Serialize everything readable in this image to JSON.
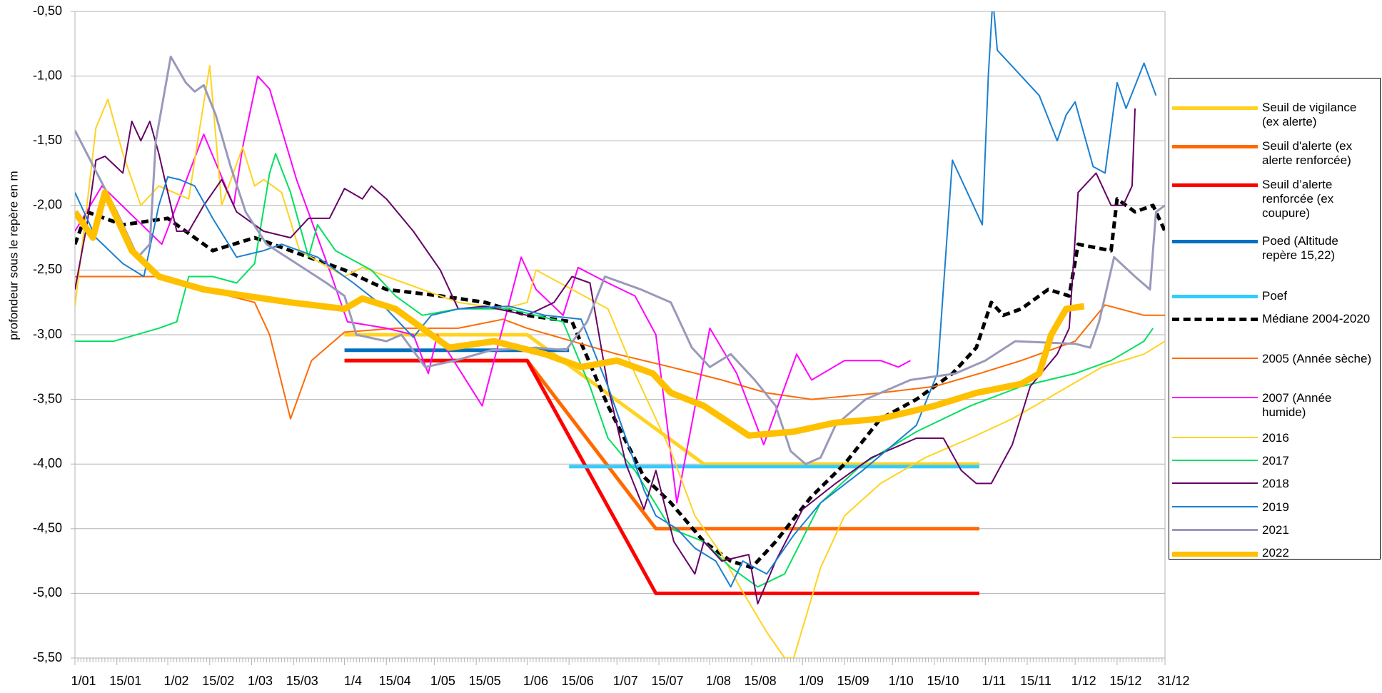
{
  "chart_data": {
    "type": "line",
    "y_label": "profondeur sous le repère en m",
    "xlim": [
      1,
      365
    ],
    "ylim": [
      -5.5,
      -0.5
    ],
    "xticks": [
      {
        "value": 1,
        "label": "1/01"
      },
      {
        "value": 15,
        "label": "15/01"
      },
      {
        "value": 32,
        "label": "1/02"
      },
      {
        "value": 46,
        "label": "15/02"
      },
      {
        "value": 60,
        "label": "1/03"
      },
      {
        "value": 74,
        "label": "15/03"
      },
      {
        "value": 91,
        "label": "1/4"
      },
      {
        "value": 105,
        "label": "15/04"
      },
      {
        "value": 121,
        "label": "1/05"
      },
      {
        "value": 135,
        "label": "15/05"
      },
      {
        "value": 152,
        "label": "1/06"
      },
      {
        "value": 166,
        "label": "15/06"
      },
      {
        "value": 182,
        "label": "1/07"
      },
      {
        "value": 196,
        "label": "15/07"
      },
      {
        "value": 213,
        "label": "1/08"
      },
      {
        "value": 227,
        "label": "15/08"
      },
      {
        "value": 244,
        "label": "1/09"
      },
      {
        "value": 258,
        "label": "15/09"
      },
      {
        "value": 274,
        "label": "1/10"
      },
      {
        "value": 288,
        "label": "15/10"
      },
      {
        "value": 305,
        "label": "1/11"
      },
      {
        "value": 319,
        "label": "15/11"
      },
      {
        "value": 335,
        "label": "1/12"
      },
      {
        "value": 349,
        "label": "15/12"
      },
      {
        "value": 365,
        "label": "31/12"
      }
    ],
    "yticks": [
      {
        "value": -0.5,
        "label": "-0,50"
      },
      {
        "value": -1,
        "label": "-1,00"
      },
      {
        "value": -1.5,
        "label": "-1,50"
      },
      {
        "value": -2,
        "label": "-2,00"
      },
      {
        "value": -2.5,
        "label": "-2,50"
      },
      {
        "value": -3,
        "label": "-3,00"
      },
      {
        "value": -3.5,
        "label": "-3,50"
      },
      {
        "value": -4,
        "label": "-4,00"
      },
      {
        "value": -4.5,
        "label": "-4,50"
      },
      {
        "value": -5,
        "label": "-5,00"
      },
      {
        "value": -5.5,
        "label": "-5,50"
      }
    ],
    "grid": true,
    "legend": "right",
    "series": [
      {
        "name": "Seuil de vigilance (ex alerte)",
        "color": "#ffd320",
        "width": 5,
        "x": [
          91,
          152,
          211,
          303
        ],
        "values": [
          -3,
          -3,
          -4,
          -4
        ]
      },
      {
        "name": "Seuil d'alerte (ex alerte renforcée)",
        "color": "#ff6a00",
        "width": 5,
        "x": [
          91,
          152,
          195,
          303
        ],
        "values": [
          -3.2,
          -3.2,
          -4.5,
          -4.5
        ]
      },
      {
        "name": "Seuil d’alerte renforcée (ex coupure)",
        "color": "#ff0000",
        "width": 5,
        "x": [
          91,
          152,
          195,
          303
        ],
        "values": [
          -3.2,
          -3.2,
          -5,
          -5
        ]
      },
      {
        "name": "Poed (Altitude repère 15,22)",
        "color": "#0070c0",
        "width": 5,
        "x": [
          91,
          166
        ],
        "values": [
          -3.12,
          -3.12
        ]
      },
      {
        "name": "Poef",
        "color": "#33ccff",
        "width": 5,
        "x": [
          166,
          303
        ],
        "values": [
          -4.02,
          -4.02
        ]
      },
      {
        "name": "Médiane 2004-2020",
        "color": "#000000",
        "width": 5,
        "dashed": true,
        "x": [
          1,
          5,
          17,
          32,
          47,
          61,
          73,
          91,
          105,
          123,
          138,
          152,
          167,
          179,
          191,
          200,
          211,
          220,
          227,
          235,
          247,
          258,
          270,
          282,
          294,
          302,
          307,
          311,
          317,
          326,
          333,
          336,
          347,
          349,
          355,
          361,
          365
        ],
        "values": [
          -2.3,
          -2.05,
          -2.15,
          -2.1,
          -2.35,
          -2.25,
          -2.35,
          -2.5,
          -2.65,
          -2.7,
          -2.75,
          -2.85,
          -2.9,
          -3.55,
          -4.1,
          -4.3,
          -4.6,
          -4.75,
          -4.8,
          -4.6,
          -4.25,
          -4,
          -3.65,
          -3.5,
          -3.3,
          -3.1,
          -2.75,
          -2.85,
          -2.8,
          -2.65,
          -2.7,
          -2.3,
          -2.35,
          -1.95,
          -2.05,
          -2,
          -2.2
        ]
      },
      {
        "name": "2005 (Année sèche)",
        "color": "#ff6a00",
        "width": 2,
        "x": [
          1,
          20,
          29,
          44,
          61,
          66,
          73,
          80,
          91,
          108,
          129,
          144,
          152,
          167,
          182,
          200,
          217,
          232,
          247,
          270,
          288,
          303,
          317,
          335,
          345,
          358,
          365
        ],
        "values": [
          -2.55,
          -2.55,
          -2.55,
          -2.65,
          -2.75,
          -3,
          -3.65,
          -3.2,
          -2.98,
          -2.95,
          -2.95,
          -2.88,
          -2.95,
          -3.05,
          -3.15,
          -3.25,
          -3.35,
          -3.45,
          -3.5,
          -3.45,
          -3.4,
          -3.3,
          -3.2,
          -3.05,
          -2.77,
          -2.85,
          -2.85
        ]
      },
      {
        "name": "2007 (Année humide)",
        "color": "#ff00ff",
        "width": 2,
        "x": [
          1,
          10,
          30,
          44,
          54,
          57,
          62,
          66,
          75,
          86,
          92,
          105,
          114,
          119,
          122,
          137,
          150,
          155,
          164,
          169,
          179,
          188,
          195,
          202,
          213,
          222,
          231,
          242,
          247,
          258,
          270,
          276,
          280
        ],
        "values": [
          -2.2,
          -1.85,
          -2.3,
          -1.45,
          -2,
          -1.55,
          -1,
          -1.1,
          -1.8,
          -2.5,
          -2.9,
          -2.95,
          -3,
          -3.3,
          -3,
          -3.55,
          -2.4,
          -2.65,
          -2.85,
          -2.48,
          -2.6,
          -2.7,
          -3,
          -4.3,
          -2.95,
          -3.3,
          -3.85,
          -3.15,
          -3.35,
          -3.2,
          -3.2,
          -3.25,
          -3.2
        ]
      },
      {
        "name": "2016",
        "color": "#ffd320",
        "width": 2,
        "x": [
          1,
          5,
          8,
          12,
          17,
          23,
          29,
          39,
          42,
          46,
          50,
          57,
          61,
          64,
          70,
          76,
          91,
          97,
          111,
          129,
          144,
          152,
          155,
          167,
          179,
          188,
          200,
          208,
          217,
          223,
          232,
          238,
          241,
          250,
          258,
          270,
          285,
          300,
          314,
          329,
          344,
          358,
          365
        ],
        "values": [
          -2.78,
          -2,
          -1.4,
          -1.18,
          -1.6,
          -2,
          -1.85,
          -1.95,
          -1.5,
          -0.92,
          -2,
          -1.55,
          -1.85,
          -1.8,
          -1.9,
          -2.35,
          -2.55,
          -2.48,
          -2.6,
          -2.75,
          -2.8,
          -2.75,
          -2.5,
          -2.65,
          -2.8,
          -3.3,
          -3.9,
          -4.4,
          -4.7,
          -4.95,
          -5.3,
          -5.5,
          -5.5,
          -4.8,
          -4.4,
          -4.15,
          -3.95,
          -3.8,
          -3.65,
          -3.45,
          -3.25,
          -3.15,
          -3.05
        ]
      },
      {
        "name": "2017",
        "color": "#00e060",
        "width": 2,
        "x": [
          1,
          14,
          29,
          35,
          39,
          47,
          55,
          61,
          66,
          68,
          73,
          79,
          82,
          88,
          100,
          108,
          117,
          129,
          146,
          164,
          173,
          179,
          188,
          200,
          211,
          220,
          229,
          238,
          250,
          264,
          282,
          300,
          317,
          335,
          347,
          358,
          361
        ],
        "values": [
          -3.05,
          -3.05,
          -2.95,
          -2.9,
          -2.55,
          -2.55,
          -2.6,
          -2.45,
          -1.75,
          -1.6,
          -1.9,
          -2.4,
          -2.15,
          -2.35,
          -2.5,
          -2.7,
          -2.85,
          -2.8,
          -2.8,
          -2.9,
          -3.4,
          -3.8,
          -4.05,
          -4.5,
          -4.6,
          -4.8,
          -4.95,
          -4.85,
          -4.3,
          -4,
          -3.75,
          -3.55,
          -3.4,
          -3.3,
          -3.2,
          -3.05,
          -2.95
        ]
      },
      {
        "name": "2018",
        "color": "#660066",
        "width": 2,
        "x": [
          1,
          5,
          8,
          11,
          17,
          20,
          23,
          26,
          29,
          35,
          39,
          44,
          50,
          55,
          64,
          73,
          79,
          86,
          91,
          97,
          100,
          105,
          114,
          123,
          129,
          138,
          152,
          161,
          167,
          173,
          179,
          185,
          191,
          195,
          201,
          208,
          211,
          217,
          226,
          229,
          235,
          244,
          255,
          267,
          282,
          291,
          297,
          302,
          307,
          314,
          320,
          329,
          333,
          336,
          342,
          347,
          351,
          354,
          355
        ],
        "values": [
          -2.65,
          -2.15,
          -1.65,
          -1.62,
          -1.75,
          -1.35,
          -1.5,
          -1.35,
          -1.6,
          -2.2,
          -2.2,
          -2,
          -1.8,
          -2.05,
          -2.2,
          -2.25,
          -2.1,
          -2.1,
          -1.87,
          -1.95,
          -1.85,
          -1.95,
          -2.2,
          -2.5,
          -2.8,
          -2.78,
          -2.85,
          -2.75,
          -2.55,
          -2.6,
          -3.4,
          -4,
          -4.35,
          -4.05,
          -4.6,
          -4.85,
          -4.6,
          -4.75,
          -4.7,
          -5.08,
          -4.75,
          -4.35,
          -4.15,
          -3.95,
          -3.8,
          -3.8,
          -4.05,
          -4.15,
          -4.15,
          -3.85,
          -3.4,
          -3.15,
          -2.95,
          -1.9,
          -1.75,
          -2,
          -2,
          -1.85,
          -1.25
        ]
      },
      {
        "name": "2019",
        "color": "#1a80d0",
        "width": 2,
        "x": [
          1,
          8,
          17,
          24,
          29,
          32,
          36,
          41,
          47,
          55,
          64,
          70,
          82,
          94,
          105,
          114,
          120,
          129,
          146,
          158,
          170,
          179,
          185,
          191,
          195,
          202,
          208,
          215,
          220,
          224,
          232,
          241,
          250,
          264,
          282,
          289,
          294,
          300,
          304,
          306,
          307.5,
          309,
          311,
          317,
          323,
          329,
          332,
          335,
          341,
          345,
          349,
          352,
          358,
          362
        ],
        "values": [
          -1.9,
          -2.25,
          -2.45,
          -2.55,
          -2,
          -1.78,
          -1.8,
          -1.85,
          -2.1,
          -2.4,
          -2.35,
          -2.3,
          -2.4,
          -2.6,
          -2.8,
          -3.02,
          -2.85,
          -2.8,
          -2.78,
          -2.85,
          -2.88,
          -3.4,
          -3.8,
          -4.2,
          -4.4,
          -4.5,
          -4.65,
          -4.75,
          -4.95,
          -4.75,
          -4.85,
          -4.55,
          -4.3,
          -4.05,
          -3.7,
          -3.3,
          -1.65,
          -1.95,
          -2.15,
          -1,
          -0.4,
          -0.8,
          -0.85,
          -1,
          -1.15,
          -1.5,
          -1.3,
          -1.2,
          -1.7,
          -1.75,
          -1.05,
          -1.25,
          -0.9,
          -1.15
        ]
      },
      {
        "name": "2021",
        "color": "#9999bb",
        "width": 3,
        "x": [
          1,
          5,
          15,
          22,
          26,
          28,
          33,
          38,
          41,
          44,
          48,
          53,
          58,
          65,
          75,
          85,
          91,
          95,
          105,
          110,
          118,
          128,
          140,
          155,
          165,
          172,
          178,
          190,
          200,
          207,
          213,
          220,
          228,
          235,
          240,
          245,
          250,
          255,
          265,
          280,
          295,
          305,
          315,
          335,
          340,
          343,
          348,
          355,
          360,
          362,
          365
        ],
        "values": [
          -1.42,
          -1.6,
          -2.05,
          -2.4,
          -2.3,
          -1.5,
          -0.85,
          -1.05,
          -1.12,
          -1.07,
          -1.3,
          -1.7,
          -2.05,
          -2.3,
          -2.45,
          -2.6,
          -2.7,
          -3,
          -3.05,
          -3,
          -3.25,
          -3.2,
          -3.12,
          -3.1,
          -3.12,
          -2.9,
          -2.55,
          -2.65,
          -2.75,
          -3.1,
          -3.25,
          -3.15,
          -3.35,
          -3.55,
          -3.9,
          -4,
          -3.95,
          -3.7,
          -3.5,
          -3.35,
          -3.3,
          -3.2,
          -3.05,
          -3.07,
          -3.1,
          -2.9,
          -2.4,
          -2.55,
          -2.65,
          -2.05,
          -2
        ]
      },
      {
        "name": "2022",
        "color": "#ffc000",
        "width": 9,
        "x": [
          1,
          7,
          11,
          20,
          29,
          44,
          58,
          73,
          91,
          97,
          108,
          117,
          126,
          141,
          158,
          170,
          182,
          194,
          200,
          211,
          226,
          241,
          255,
          270,
          288,
          302,
          317,
          323,
          327,
          332,
          338
        ],
        "values": [
          -2.05,
          -2.25,
          -1.9,
          -2.35,
          -2.55,
          -2.65,
          -2.7,
          -2.75,
          -2.8,
          -2.72,
          -2.8,
          -2.95,
          -3.1,
          -3.05,
          -3.15,
          -3.25,
          -3.2,
          -3.3,
          -3.45,
          -3.55,
          -3.78,
          -3.75,
          -3.68,
          -3.65,
          -3.55,
          -3.45,
          -3.38,
          -3.3,
          -3,
          -2.8,
          -2.78
        ]
      }
    ]
  }
}
